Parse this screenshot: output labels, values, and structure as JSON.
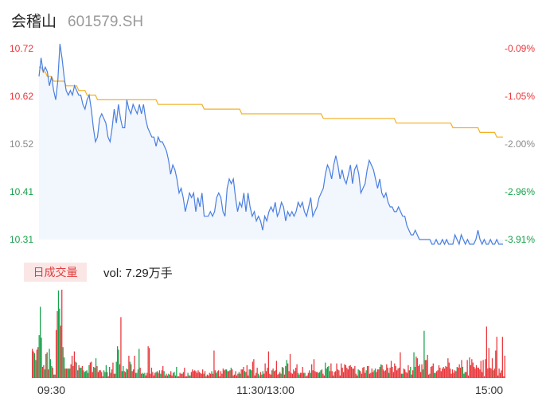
{
  "header": {
    "name": "会稽山",
    "code": "601579.SH"
  },
  "volume": {
    "tab_label": "日成交量",
    "text": "vol: 7.29万手"
  },
  "colors": {
    "up": "#e8363a",
    "down": "#16a24a",
    "price_line": "#4a7fe0",
    "avg_line": "#f2b026",
    "price_fill": "#f2f6fd",
    "neutral": "#8a8a8a"
  },
  "chart_data": [
    {
      "type": "line",
      "y_ticks": [
        "10.72",
        "10.62",
        "10.52",
        "10.41",
        "10.31"
      ],
      "y_ticks_right": [
        "-0.09%",
        "-1.05%",
        "-2.00%",
        "-2.96%",
        "-3.91%"
      ],
      "ylim": [
        10.31,
        10.72
      ],
      "x_ticks": [
        "09:30",
        "11:30/13:00",
        "15:00"
      ],
      "series": [
        {
          "key": "price",
          "values": [
            10.66,
            10.7,
            10.67,
            10.68,
            10.67,
            10.64,
            10.66,
            10.63,
            10.61,
            10.65,
            10.73,
            10.7,
            10.66,
            10.63,
            10.62,
            10.63,
            10.62,
            10.64,
            10.63,
            10.62,
            10.62,
            10.6,
            10.59,
            10.61,
            10.62,
            10.59,
            10.55,
            10.52,
            10.53,
            10.57,
            10.58,
            10.57,
            10.56,
            10.53,
            10.52,
            10.55,
            10.59,
            10.56,
            10.6,
            10.57,
            10.55,
            10.55,
            10.61,
            10.59,
            10.58,
            10.6,
            10.59,
            10.58,
            10.6,
            10.58,
            10.6,
            10.57,
            10.55,
            10.54,
            10.53,
            10.53,
            10.51,
            10.53,
            10.52,
            10.52,
            10.51,
            10.5,
            10.48,
            10.45,
            10.47,
            10.46,
            10.44,
            10.41,
            10.42,
            10.4,
            10.37,
            10.39,
            10.41,
            10.4,
            10.41,
            10.37,
            10.4,
            10.38,
            10.41,
            10.36,
            10.36,
            10.36,
            10.37,
            10.36,
            10.37,
            10.4,
            10.41,
            10.4,
            10.37,
            10.36,
            10.42,
            10.44,
            10.43,
            10.44,
            10.4,
            10.37,
            10.39,
            10.38,
            10.41,
            10.37,
            10.41,
            10.38,
            10.36,
            10.37,
            10.35,
            10.36,
            10.35,
            10.33,
            10.36,
            10.35,
            10.37,
            10.38,
            10.37,
            10.39,
            10.36,
            10.37,
            10.39,
            10.38,
            10.35,
            10.37,
            10.36,
            10.37,
            10.36,
            10.37,
            10.39,
            10.38,
            10.39,
            10.37,
            10.36,
            10.38,
            10.4,
            10.36,
            10.37,
            10.38,
            10.4,
            10.41,
            10.42,
            10.45,
            10.47,
            10.46,
            10.44,
            10.47,
            10.49,
            10.47,
            10.44,
            10.46,
            10.44,
            10.43,
            10.45,
            10.47,
            10.43,
            10.46,
            10.47,
            10.45,
            10.41,
            10.42,
            10.43,
            10.46,
            10.48,
            10.47,
            10.46,
            10.44,
            10.42,
            10.44,
            10.41,
            10.4,
            10.41,
            10.39,
            10.38,
            10.38,
            10.37,
            10.37,
            10.38,
            10.37,
            10.36,
            10.36,
            10.34,
            10.33,
            10.32,
            10.32,
            10.33,
            10.32,
            10.31,
            10.31,
            10.31,
            10.31,
            10.31,
            10.31,
            10.3,
            10.3,
            10.31,
            10.3,
            10.3,
            10.31,
            10.3,
            10.31,
            10.3,
            10.3,
            10.3,
            10.32,
            10.31,
            10.3,
            10.32,
            10.31,
            10.3,
            10.31,
            10.3,
            10.3,
            10.3,
            10.31,
            10.33,
            10.31,
            10.3,
            10.31,
            10.3,
            10.3,
            10.31,
            10.3,
            10.3,
            10.31,
            10.3,
            10.3,
            10.3
          ]
        },
        {
          "key": "avg",
          "values": [
            10.68,
            10.68,
            10.67,
            10.67,
            10.66,
            10.66,
            10.66,
            10.65,
            10.65,
            10.65,
            10.65,
            10.65,
            10.65,
            10.64,
            10.64,
            10.64,
            10.64,
            10.64,
            10.64,
            10.63,
            10.63,
            10.63,
            10.63,
            10.62,
            10.62,
            10.62,
            10.62,
            10.62,
            10.61,
            10.61,
            10.61,
            10.61,
            10.61,
            10.61,
            10.61,
            10.61,
            10.61,
            10.61,
            10.61,
            10.61,
            10.61,
            10.61,
            10.61,
            10.61,
            10.61,
            10.61,
            10.61,
            10.61,
            10.61,
            10.61,
            10.61,
            10.61,
            10.61,
            10.61,
            10.61,
            10.61,
            10.61,
            10.6,
            10.6,
            10.6,
            10.6,
            10.6,
            10.6,
            10.6,
            10.6,
            10.6,
            10.6,
            10.6,
            10.6,
            10.6,
            10.6,
            10.6,
            10.6,
            10.6,
            10.6,
            10.6,
            10.6,
            10.6,
            10.6,
            10.59,
            10.59,
            10.59,
            10.59,
            10.59,
            10.59,
            10.59,
            10.59,
            10.59,
            10.59,
            10.59,
            10.59,
            10.59,
            10.59,
            10.59,
            10.59,
            10.59,
            10.59,
            10.58,
            10.58,
            10.58,
            10.58,
            10.58,
            10.58,
            10.58,
            10.58,
            10.58,
            10.58,
            10.58,
            10.58,
            10.58,
            10.58,
            10.58,
            10.58,
            10.58,
            10.58,
            10.58,
            10.58,
            10.58,
            10.58,
            10.58,
            10.58,
            10.58,
            10.58,
            10.58,
            10.58,
            10.58,
            10.58,
            10.58,
            10.58,
            10.58,
            10.58,
            10.58,
            10.58,
            10.58,
            10.58,
            10.58,
            10.57,
            10.57,
            10.57,
            10.57,
            10.57,
            10.57,
            10.57,
            10.57,
            10.57,
            10.57,
            10.57,
            10.57,
            10.57,
            10.57,
            10.57,
            10.57,
            10.57,
            10.57,
            10.57,
            10.57,
            10.57,
            10.57,
            10.57,
            10.57,
            10.57,
            10.57,
            10.57,
            10.57,
            10.57,
            10.57,
            10.57,
            10.57,
            10.57,
            10.57,
            10.57,
            10.56,
            10.56,
            10.56,
            10.56,
            10.56,
            10.56,
            10.56,
            10.56,
            10.56,
            10.56,
            10.56,
            10.56,
            10.56,
            10.56,
            10.56,
            10.56,
            10.56,
            10.56,
            10.56,
            10.56,
            10.56,
            10.56,
            10.56,
            10.56,
            10.56,
            10.56,
            10.56,
            10.55,
            10.55,
            10.55,
            10.55,
            10.55,
            10.55,
            10.55,
            10.55,
            10.55,
            10.55,
            10.55,
            10.55,
            10.55,
            10.54,
            10.54,
            10.54,
            10.54,
            10.54,
            10.54,
            10.54,
            10.54,
            10.53,
            10.53,
            10.53,
            10.53
          ]
        }
      ]
    },
    {
      "type": "bar",
      "values": [
        34,
        31,
        29,
        21,
        33,
        36,
        50,
        83,
        47,
        13,
        15,
        10,
        28,
        30,
        10,
        34,
        22,
        14,
        12,
        4,
        4,
        56,
        78,
        102,
        81,
        61,
        103,
        36,
        24,
        11,
        11,
        11,
        11,
        11,
        16,
        26,
        14,
        31,
        19,
        18,
        9,
        15,
        12,
        12,
        14,
        9,
        7,
        8,
        9,
        6,
        15,
        18,
        19,
        7,
        13,
        12,
        23,
        14,
        7,
        9,
        9,
        7,
        2,
        9,
        7,
        15,
        7,
        2,
        13,
        6,
        10,
        18,
        5,
        5,
        19,
        37,
        33,
        16,
        71,
        8,
        14,
        8,
        7,
        11,
        10,
        26,
        19,
        16,
        8,
        10,
        26,
        6,
        6,
        10,
        34,
        12,
        5,
        6,
        5,
        6,
        3,
        6,
        37,
        35,
        5,
        12,
        7,
        3,
        6,
        7,
        8,
        6,
        9,
        5,
        9,
        14,
        8,
        3,
        5,
        3,
        5,
        4,
        8,
        3,
        6,
        7,
        3,
        13,
        2,
        2,
        6,
        5,
        5,
        7,
        12,
        2,
        2,
        6,
        3,
        3,
        7,
        10,
        8,
        9,
        8,
        6,
        9,
        7,
        6,
        5,
        10,
        5,
        8,
        2,
        4,
        3,
        6,
        5,
        8,
        5,
        32,
        9,
        6,
        8,
        9,
        2,
        8,
        5,
        11,
        9,
        10,
        10,
        8,
        8,
        9,
        12,
        10,
        3,
        4,
        8,
        3,
        5,
        7,
        5,
        10,
        10,
        13,
        8,
        7,
        15,
        3,
        10,
        10,
        9,
        19,
        22,
        3,
        6,
        12,
        5,
        3,
        7,
        4,
        8,
        5,
        17,
        8,
        12,
        31,
        5,
        4,
        9,
        11,
        8,
        9,
        20,
        4,
        5,
        7,
        5,
        13,
        12,
        4,
        14,
        21,
        17,
        8,
        28,
        6,
        5,
        10,
        8,
        12,
        16,
        6,
        4,
        6,
        6,
        13,
        6,
        6,
        2,
        3,
        6,
        9,
        6,
        16,
        9,
        22,
        8,
        7,
        7,
        6,
        7,
        9,
        10,
        5,
        3,
        18,
        11,
        13,
        14,
        8,
        17,
        8,
        3,
        7,
        8,
        17,
        10,
        9,
        3,
        17,
        12,
        7,
        16,
        15,
        12,
        10,
        14,
        15,
        13,
        11,
        11,
        14,
        5,
        3,
        10,
        9,
        8,
        5,
        12,
        13,
        6,
        9,
        14,
        14,
        5,
        6,
        11,
        7,
        9,
        11,
        7,
        10,
        10,
        13,
        16,
        15,
        10,
        8,
        9,
        16,
        12,
        6,
        12,
        20,
        13,
        7,
        17,
        14,
        9,
        11,
        12,
        30,
        5,
        5,
        11,
        10,
        7,
        6,
        15,
        9,
        13,
        4,
        9,
        30,
        13,
        25,
        23,
        14,
        16,
        7,
        16,
        10,
        55,
        21,
        21,
        27,
        4,
        5,
        13,
        14,
        17,
        6,
        6,
        8,
        9,
        15,
        12,
        8,
        11,
        13,
        11,
        14,
        13,
        23,
        18,
        11,
        5,
        10,
        6,
        9,
        8,
        13,
        12,
        16,
        12,
        21,
        13,
        5,
        7,
        7,
        21,
        3,
        24,
        15,
        22,
        18,
        13,
        11,
        15,
        12,
        12,
        10,
        20,
        7,
        21,
        2,
        22,
        60,
        11,
        35,
        12,
        11,
        23,
        9,
        11,
        32,
        48,
        3,
        11,
        6,
        9,
        48,
        2,
        26
      ],
      "directions": "uudduuddduudduuddduuduudduudduuddduuuudnduddudddduduuuudduuuuuuddduuduuuudddduuddudduuduuuuddndudduduuuuuuuuuduuuduuduuuduuuududuuuuuduuududuuuuuuuuuuuduuuuuuduuudduuuuuuuduuududuuuudduuuduuuudduuuuudnudduuuuuuuduuuuuuudduuuduuuuuuuuudduuuuduuuuduuuuuuddduuudddduuuduuuuuuuuuuuuuuuuuduuudduuuuudduuuuudduuuuduuuuuuduuuuuuuuuuuduuuuuuduudduuuuuudduuuuduuudduuuuuuuuuuuuuuuuuuduuuuddduuuuuuuuuuuuuuuuuuuuuuuuduuuuuuuuuuuuuuuuuuuuuuuuuuuuuuduuuuuuuuuuduuuu"
    }
  ]
}
